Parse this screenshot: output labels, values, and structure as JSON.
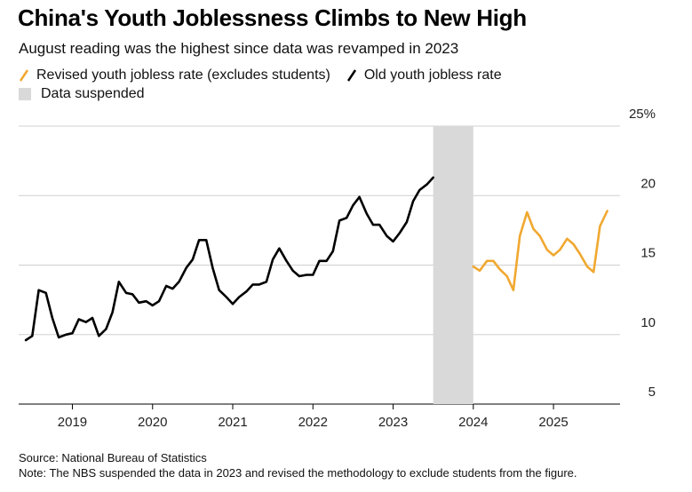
{
  "title": "China's Youth Joblessness Climbs to New High",
  "subtitle": "August reading was the highest since data was revamped in 2023",
  "legend": {
    "revised": "Revised youth jobless rate (excludes students)",
    "old": "Old youth jobless rate",
    "suspended": "Data suspended"
  },
  "colors": {
    "revised": "#f0a830",
    "old": "#000000",
    "suspended": "#d9d9d9",
    "grid": "#d0d0d0"
  },
  "chart_data": {
    "type": "line",
    "title": "China's Youth Joblessness Climbs to New High",
    "xlabel": "",
    "ylabel": "",
    "ylim": [
      5,
      25
    ],
    "yticks": [
      5,
      10,
      15,
      20,
      25
    ],
    "ytick_labels": [
      "5",
      "10",
      "15",
      "20",
      "25%"
    ],
    "xlim": [
      2018.33,
      2025.83
    ],
    "xticks": [
      2019,
      2020,
      2021,
      2022,
      2023,
      2024,
      2025
    ],
    "xtick_labels": [
      "2019",
      "2020",
      "2021",
      "2022",
      "2023",
      "2024",
      "2025"
    ],
    "suspended_range": [
      2023.5,
      2024.0
    ],
    "series": [
      {
        "name": "Old youth jobless rate",
        "color": "#000000",
        "x": [
          2018.42,
          2018.5,
          2018.58,
          2018.67,
          2018.75,
          2018.83,
          2018.92,
          2019.0,
          2019.08,
          2019.17,
          2019.25,
          2019.33,
          2019.42,
          2019.5,
          2019.58,
          2019.67,
          2019.75,
          2019.83,
          2019.92,
          2020.0,
          2020.08,
          2020.17,
          2020.25,
          2020.33,
          2020.42,
          2020.5,
          2020.58,
          2020.67,
          2020.75,
          2020.83,
          2020.92,
          2021.0,
          2021.08,
          2021.17,
          2021.25,
          2021.33,
          2021.42,
          2021.5,
          2021.58,
          2021.67,
          2021.75,
          2021.83,
          2021.92,
          2022.0,
          2022.08,
          2022.17,
          2022.25,
          2022.33,
          2022.42,
          2022.5,
          2022.58,
          2022.67,
          2022.75,
          2022.83,
          2022.92,
          2023.0,
          2023.08,
          2023.17,
          2023.25,
          2023.33,
          2023.42,
          2023.5
        ],
        "values": [
          9.6,
          9.9,
          13.2,
          13.0,
          11.2,
          9.8,
          10.0,
          10.1,
          11.1,
          10.9,
          11.2,
          9.9,
          10.4,
          11.6,
          13.8,
          13.0,
          12.9,
          12.3,
          12.4,
          12.1,
          12.4,
          13.5,
          13.3,
          13.8,
          14.8,
          15.4,
          16.8,
          16.8,
          14.8,
          13.2,
          12.7,
          12.2,
          12.7,
          13.1,
          13.6,
          13.6,
          13.8,
          15.4,
          16.2,
          15.3,
          14.6,
          14.2,
          14.3,
          14.3,
          15.3,
          15.3,
          16.0,
          18.2,
          18.4,
          19.3,
          19.9,
          18.7,
          17.9,
          17.9,
          17.1,
          16.7,
          17.3,
          18.1,
          19.6,
          20.4,
          20.8,
          21.3
        ]
      },
      {
        "name": "Revised youth jobless rate (excludes students)",
        "color": "#f0a830",
        "x": [
          2024.0,
          2024.08,
          2024.17,
          2024.25,
          2024.33,
          2024.42,
          2024.5,
          2024.58,
          2024.67,
          2024.75,
          2024.83,
          2024.92,
          2025.0,
          2025.08,
          2025.17,
          2025.25,
          2025.33,
          2025.42,
          2025.5,
          2025.58,
          2025.67
        ],
        "values": [
          14.9,
          14.6,
          15.3,
          15.3,
          14.7,
          14.2,
          13.2,
          17.1,
          18.8,
          17.6,
          17.1,
          16.1,
          15.7,
          16.1,
          16.9,
          16.5,
          15.8,
          14.9,
          14.5,
          17.8,
          18.9
        ]
      }
    ]
  },
  "footer": {
    "source": "Source: National Bureau of Statistics",
    "note": "Note: The NBS suspended the data in 2023 and revised the methodology to exclude students from the figure."
  }
}
